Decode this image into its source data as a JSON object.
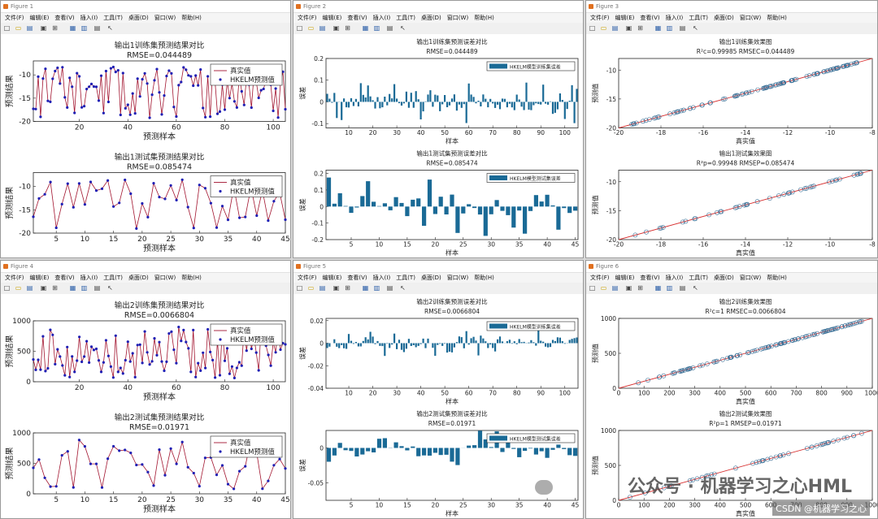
{
  "menu": [
    "文件(F)",
    "编辑(E)",
    "查看(V)",
    "插入(I)",
    "工具(T)",
    "桌面(D)",
    "窗口(W)",
    "帮助(H)"
  ],
  "legend": {
    "true": "真实值",
    "pred": "HKELM预测值",
    "train_err": "HKELM模型训练集误差",
    "test_err": "HKELM模型测试集误差"
  },
  "colors": {
    "true_line": "#a2142f",
    "pred_marker": "#1f1fb4",
    "bar": "#1a6a96",
    "scatter": "#3a6f96",
    "diag": "#d73030"
  },
  "windows": [
    {
      "title": "Figure 1",
      "plots": [
        {
          "kind": "ts",
          "title": "输出1训练集预测结果对比",
          "sub": "RMSE=0.044489",
          "xlabel": "预测样本",
          "ylabel": "预测结果",
          "n": 105,
          "ylim": [
            -20,
            -7
          ],
          "yticks": [
            -20,
            -15,
            -10
          ],
          "xticks": [
            20,
            40,
            60,
            80,
            100
          ],
          "seed": 11
        },
        {
          "kind": "ts",
          "title": "输出1测试集预测结果对比",
          "sub": "RMSE=0.085474",
          "xlabel": "预测样本",
          "ylabel": "预测结果",
          "n": 45,
          "ylim": [
            -20,
            -7
          ],
          "yticks": [
            -20,
            -15,
            -10
          ],
          "xticks": [
            5,
            10,
            15,
            20,
            25,
            30,
            35,
            40,
            45
          ],
          "seed": 12
        }
      ]
    },
    {
      "title": "Figure 2",
      "plots": [
        {
          "kind": "bar",
          "title": "输出1训练集预测误差对比",
          "sub": "RMSE=0.044489",
          "xlabel": "样本",
          "ylabel": "误差",
          "n": 105,
          "ylim": [
            -0.12,
            0.2
          ],
          "yticks": [
            -0.1,
            0,
            0.1,
            0.2
          ],
          "xticks": [
            10,
            20,
            30,
            40,
            50,
            60,
            70,
            80,
            90,
            100
          ],
          "amp": 0.1,
          "seed": 21,
          "leg": "train_err"
        },
        {
          "kind": "bar",
          "title": "输出1测试集预测误差对比",
          "sub": "RMSE=0.085474",
          "xlabel": "样本",
          "ylabel": "误差",
          "n": 45,
          "ylim": [
            -0.2,
            0.22
          ],
          "yticks": [
            -0.2,
            -0.1,
            0,
            0.1,
            0.2
          ],
          "xticks": [
            5,
            10,
            15,
            20,
            25,
            30,
            35,
            40,
            45
          ],
          "amp": 0.18,
          "seed": 22,
          "leg": "test_err"
        }
      ]
    },
    {
      "title": "Figure 3",
      "plots": [
        {
          "kind": "sc",
          "title": "输出1训练集效果图",
          "sub": "R²c=0.99985  RMSEC=0.044489",
          "xlabel": "真实值",
          "ylabel": "预测值",
          "xlim": [
            -20,
            -8
          ],
          "ylim": [
            -20,
            -8
          ],
          "xticks": [
            -20,
            -18,
            -16,
            -14,
            -12,
            -10,
            -8
          ],
          "yticks": [
            -20,
            -15,
            -10
          ],
          "n": 105,
          "seed": 31
        },
        {
          "kind": "sc",
          "title": "输出1测试集效果图",
          "sub": "R²p=0.99948  RMSEP=0.085474",
          "xlabel": "真实值",
          "ylabel": "预测值",
          "xlim": [
            -20,
            -8
          ],
          "ylim": [
            -20,
            -8
          ],
          "xticks": [
            -20,
            -18,
            -16,
            -14,
            -12,
            -10,
            -8
          ],
          "yticks": [
            -20,
            -15,
            -10
          ],
          "n": 45,
          "seed": 32
        }
      ]
    },
    {
      "title": "Figure 4",
      "plots": [
        {
          "kind": "ts",
          "title": "输出2训练集预测结果对比",
          "sub": "RMSE=0.0066804",
          "xlabel": "预测样本",
          "ylabel": "预测结果",
          "n": 105,
          "ylim": [
            0,
            1000
          ],
          "yticks": [
            0,
            500,
            1000
          ],
          "xticks": [
            20,
            40,
            60,
            80,
            100
          ],
          "seed": 41
        },
        {
          "kind": "ts",
          "title": "输出2测试集预测结果对比",
          "sub": "RMSE=0.01971",
          "xlabel": "预测样本",
          "ylabel": "预测结果",
          "n": 45,
          "ylim": [
            0,
            1000
          ],
          "yticks": [
            0,
            500,
            1000
          ],
          "xticks": [
            5,
            10,
            15,
            20,
            25,
            30,
            35,
            40,
            45
          ],
          "seed": 42
        }
      ]
    },
    {
      "title": "Figure 5",
      "plots": [
        {
          "kind": "bar",
          "title": "输出2训练集预测误差对比",
          "sub": "RMSE=0.0066804",
          "xlabel": "样本",
          "ylabel": "误差",
          "n": 105,
          "ylim": [
            -0.04,
            0.022
          ],
          "yticks": [
            -0.04,
            -0.02,
            0,
            0.02
          ],
          "xticks": [
            10,
            20,
            30,
            40,
            50,
            60,
            70,
            80,
            90,
            100
          ],
          "amp": 0.012,
          "seed": 51,
          "leg": "train_err"
        },
        {
          "kind": "bar",
          "title": "输出2测试集预测误差对比",
          "sub": "RMSE=0.01971",
          "xlabel": "样本",
          "ylabel": "误差",
          "n": 45,
          "ylim": [
            -0.075,
            0.025
          ],
          "yticks": [
            -0.05,
            0
          ],
          "xticks": [
            5,
            10,
            15,
            20,
            25,
            30,
            35,
            40,
            45
          ],
          "amp": 0.03,
          "seed": 52,
          "leg": "test_err"
        }
      ]
    },
    {
      "title": "Figure 6",
      "plots": [
        {
          "kind": "sc",
          "title": "输出2训练集效果图",
          "sub": "R²c=1  RMSEC=0.0066804",
          "xlabel": "真实值",
          "ylabel": "预测值",
          "xlim": [
            0,
            1000
          ],
          "ylim": [
            0,
            1000
          ],
          "xticks": [
            0,
            100,
            200,
            300,
            400,
            500,
            600,
            700,
            800,
            900,
            1000
          ],
          "yticks": [
            0,
            500,
            1000
          ],
          "n": 105,
          "seed": 61
        },
        {
          "kind": "sc",
          "title": "输出2测试集效果图",
          "sub": "R²p=1  RMSEP=0.01971",
          "xlabel": "真实值",
          "ylabel": "预测值",
          "xlim": [
            0,
            1000
          ],
          "ylim": [
            0,
            1000
          ],
          "xticks": [
            0,
            100,
            200,
            300,
            400,
            500,
            600,
            700,
            800,
            900,
            1000
          ],
          "yticks": [
            0,
            500,
            1000
          ],
          "n": 45,
          "seed": 62
        }
      ]
    }
  ],
  "watermark": "公众号 · 机器学习之心HML",
  "csdn": "CSDN @机器学习之心"
}
